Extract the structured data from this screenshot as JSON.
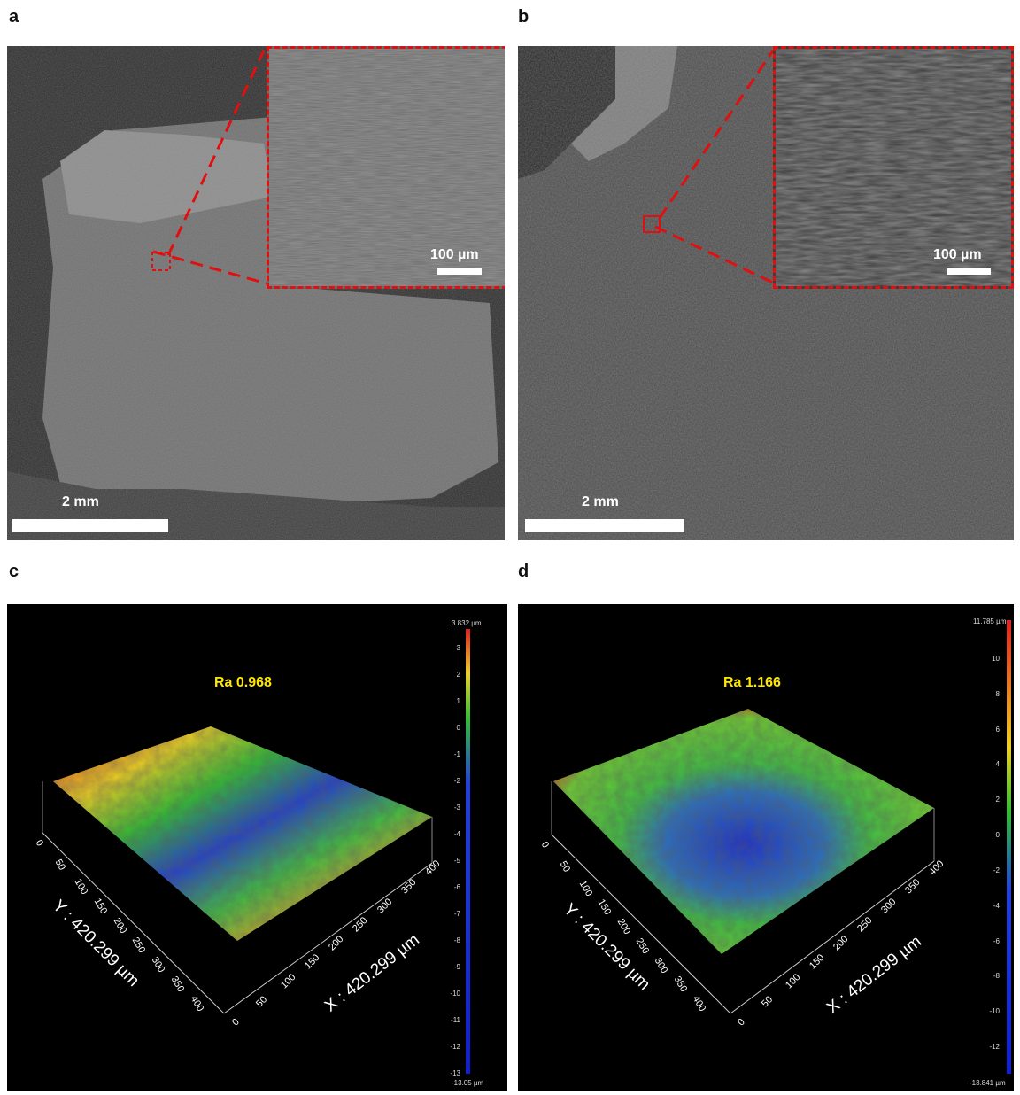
{
  "panels": {
    "a": {
      "label": "a",
      "scale_main": "2 mm",
      "scale_inset": "100 µm"
    },
    "b": {
      "label": "b",
      "scale_main": "2 mm",
      "scale_inset": "100 µm"
    },
    "c": {
      "label": "c",
      "ra": "Ra 0.968",
      "colorbar_max": "3.832 µm",
      "colorbar_min": "-13.05 µm",
      "colorbar_ticks": [
        "3",
        "2",
        "1",
        "0",
        "-1",
        "-2",
        "-3",
        "-4",
        "-5",
        "-6",
        "-7",
        "-8",
        "-9",
        "-10",
        "-11",
        "-12",
        "-13"
      ],
      "y_axis_label": "Y : 420.299 µm",
      "x_axis_label": "X : 420.299 µm",
      "y_ticks": [
        "0",
        "50",
        "100",
        "150",
        "200",
        "250",
        "300",
        "350",
        "400"
      ],
      "x_ticks": [
        "0",
        "50",
        "100",
        "150",
        "200",
        "250",
        "300",
        "350",
        "400"
      ]
    },
    "d": {
      "label": "d",
      "ra": "Ra 1.166",
      "colorbar_max": "11.785 µm",
      "colorbar_min": "-13.841 µm",
      "colorbar_ticks": [
        "10",
        "8",
        "6",
        "4",
        "2",
        "0",
        "-2",
        "-4",
        "-6",
        "-8",
        "-10",
        "-12"
      ],
      "y_axis_label": "Y : 420.299 µm",
      "x_axis_label": "X : 420.299 µm",
      "y_ticks": [
        "0",
        "50",
        "100",
        "150",
        "200",
        "250",
        "300",
        "350",
        "400"
      ],
      "x_ticks": [
        "0",
        "50",
        "100",
        "150",
        "200",
        "250",
        "300",
        "350",
        "400"
      ]
    }
  },
  "colors": {
    "inset_border": "#e01010",
    "ra_text": "#ffe600",
    "surface_high": "#e02020",
    "surface_mid": "#30c030",
    "surface_low": "#1030d0"
  }
}
